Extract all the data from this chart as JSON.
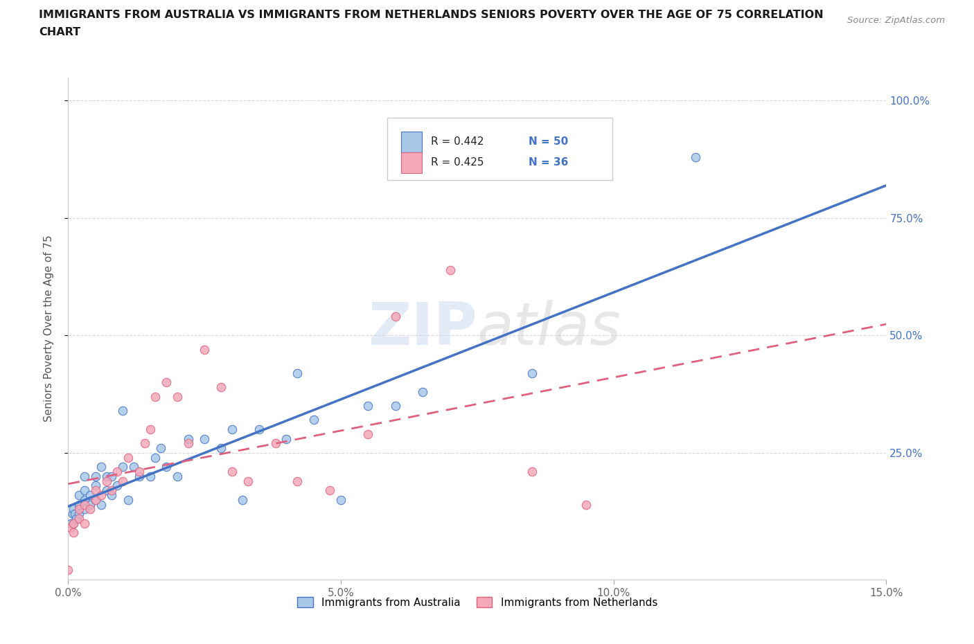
{
  "title_line1": "IMMIGRANTS FROM AUSTRALIA VS IMMIGRANTS FROM NETHERLANDS SENIORS POVERTY OVER THE AGE OF 75 CORRELATION",
  "title_line2": "CHART",
  "source": "Source: ZipAtlas.com",
  "ylabel": "Seniors Poverty Over the Age of 75",
  "xlim": [
    0.0,
    0.15
  ],
  "ylim": [
    -0.02,
    1.05
  ],
  "xticks": [
    0.0,
    0.05,
    0.1,
    0.15
  ],
  "xtick_labels": [
    "0.0%",
    "5.0%",
    "10.0%",
    "15.0%"
  ],
  "yticks": [
    0.25,
    0.5,
    0.75,
    1.0
  ],
  "ytick_labels": [
    "25.0%",
    "50.0%",
    "75.0%",
    "100.0%"
  ],
  "australia_color": "#a8c8e8",
  "netherlands_color": "#f4a8b8",
  "australia_line_color": "#4472c4",
  "netherlands_line_color": "#e06080",
  "background_color": "#ffffff",
  "grid_color": "#d8d8d8",
  "watermark": "ZIPatlas",
  "aus_x": [
    0.0005,
    0.0008,
    0.001,
    0.001,
    0.0012,
    0.0015,
    0.002,
    0.002,
    0.002,
    0.003,
    0.003,
    0.003,
    0.003,
    0.004,
    0.004,
    0.005,
    0.005,
    0.005,
    0.006,
    0.006,
    0.007,
    0.007,
    0.008,
    0.008,
    0.009,
    0.01,
    0.01,
    0.011,
    0.012,
    0.013,
    0.015,
    0.016,
    0.017,
    0.018,
    0.02,
    0.022,
    0.025,
    0.028,
    0.03,
    0.032,
    0.035,
    0.04,
    0.042,
    0.045,
    0.05,
    0.055,
    0.06,
    0.065,
    0.085,
    0.115
  ],
  "aus_y": [
    0.1,
    0.12,
    0.1,
    0.13,
    0.12,
    0.11,
    0.12,
    0.14,
    0.16,
    0.13,
    0.15,
    0.17,
    0.2,
    0.14,
    0.16,
    0.15,
    0.18,
    0.2,
    0.14,
    0.22,
    0.17,
    0.2,
    0.16,
    0.2,
    0.18,
    0.22,
    0.34,
    0.15,
    0.22,
    0.2,
    0.2,
    0.24,
    0.26,
    0.22,
    0.2,
    0.28,
    0.28,
    0.26,
    0.3,
    0.15,
    0.3,
    0.28,
    0.42,
    0.32,
    0.15,
    0.35,
    0.35,
    0.38,
    0.42,
    0.88
  ],
  "neth_x": [
    0.0005,
    0.001,
    0.001,
    0.002,
    0.002,
    0.003,
    0.003,
    0.004,
    0.005,
    0.005,
    0.006,
    0.007,
    0.008,
    0.009,
    0.01,
    0.011,
    0.013,
    0.014,
    0.015,
    0.016,
    0.018,
    0.02,
    0.022,
    0.025,
    0.028,
    0.03,
    0.033,
    0.038,
    0.042,
    0.048,
    0.055,
    0.06,
    0.07,
    0.085,
    0.095,
    0.0
  ],
  "neth_y": [
    0.09,
    0.1,
    0.08,
    0.11,
    0.13,
    0.1,
    0.14,
    0.13,
    0.15,
    0.17,
    0.16,
    0.19,
    0.17,
    0.21,
    0.19,
    0.24,
    0.21,
    0.27,
    0.3,
    0.37,
    0.4,
    0.37,
    0.27,
    0.47,
    0.39,
    0.21,
    0.19,
    0.27,
    0.19,
    0.17,
    0.29,
    0.54,
    0.64,
    0.21,
    0.14,
    0.0
  ]
}
